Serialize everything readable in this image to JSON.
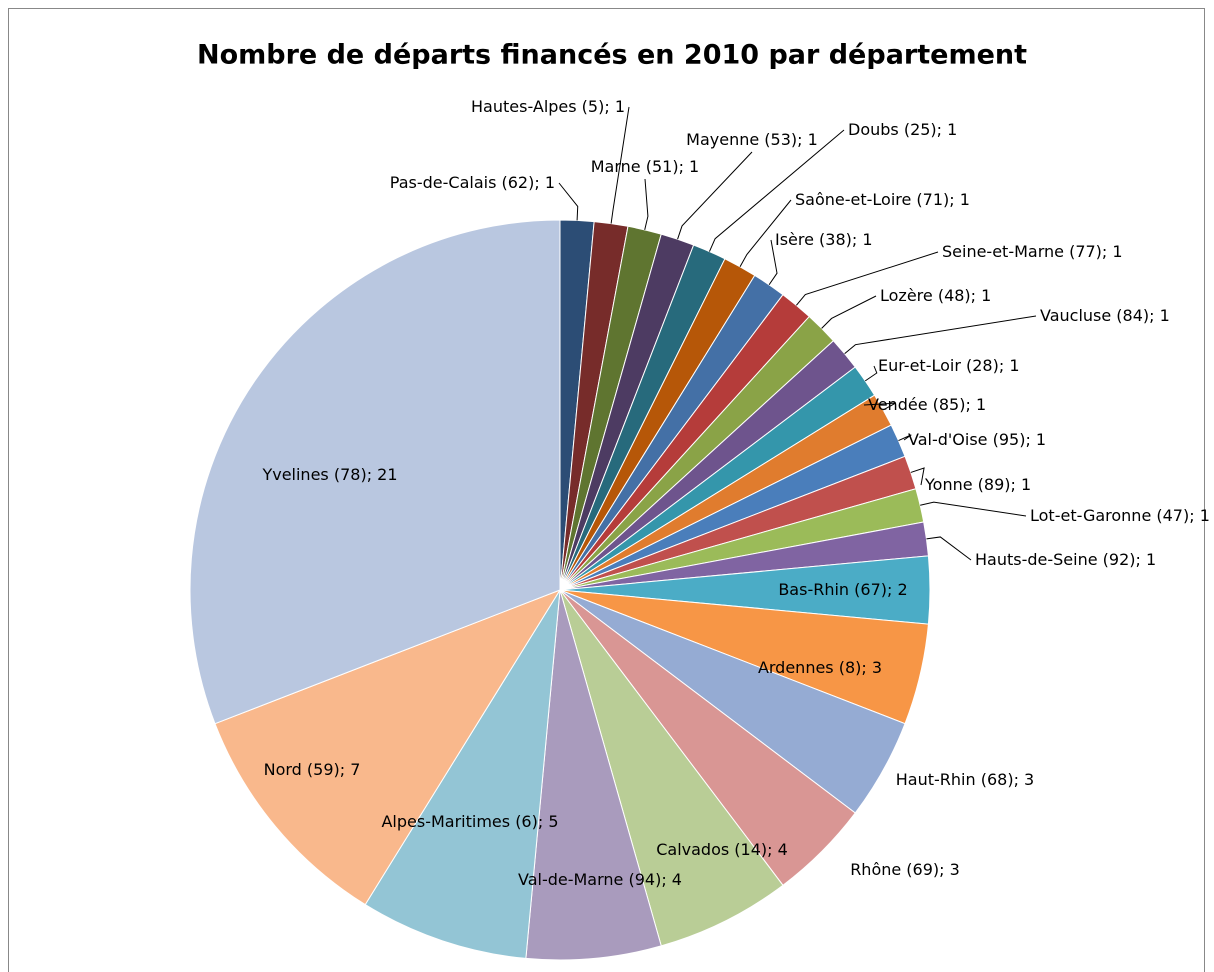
{
  "chart_data": {
    "type": "pie",
    "title": "Nombre de départs financés en 2010 par département",
    "categories": [
      "Pas-de-Calais (62)",
      "Hautes-Alpes (5)",
      "Marne (51)",
      "Mayenne (53)",
      "Doubs (25)",
      "Saône-et-Loire (71)",
      "Isère (38)",
      "Seine-et-Marne (77)",
      "Lozère (48)",
      "Vaucluse (84)",
      "Eur-et-Loir (28)",
      "Vendée (85)",
      "Val-d'Oise (95)",
      "Yonne (89)",
      "Lot-et-Garonne (47)",
      "Hauts-de-Seine (92)",
      "Bas-Rhin (67)",
      "Ardennes (8)",
      "Haut-Rhin (68)",
      "Rhône (69)",
      "Calvados (14)",
      "Val-de-Marne (94)",
      "Alpes-Maritimes (6)",
      "Nord (59)",
      "Yvelines (78)"
    ],
    "values": [
      1,
      1,
      1,
      1,
      1,
      1,
      1,
      1,
      1,
      1,
      1,
      1,
      1,
      1,
      1,
      1,
      2,
      3,
      3,
      3,
      4,
      4,
      5,
      7,
      21
    ],
    "value_labels": [
      "; 1",
      "; 1",
      "; 1",
      "; 1",
      "; 1",
      "; 1",
      "; 1",
      "; 1",
      "; 1",
      "; 1",
      "; 1",
      "; 1",
      "; 1",
      "; 1",
      "; 1",
      "; 1",
      "; 2",
      "; 3",
      "; 3",
      "; 3",
      "; 4",
      "; 4",
      "; 5",
      "; 7",
      "; 21"
    ],
    "colors": [
      "#2c4d75",
      "#772c2a",
      "#5f7530",
      "#4d3b62",
      "#276a7c",
      "#b65708",
      "#4470a6",
      "#b53c3a",
      "#8aa347",
      "#6e548d",
      "#3496ab",
      "#e07c2e",
      "#4a7ebb",
      "#c0504d",
      "#9bbb59",
      "#8064a2",
      "#4bacc6",
      "#f79646",
      "#95abd3",
      "#d99694",
      "#b9cd96",
      "#a99bbd",
      "#93c5d5",
      "#f9b88c",
      "#b9c7e0"
    ]
  }
}
